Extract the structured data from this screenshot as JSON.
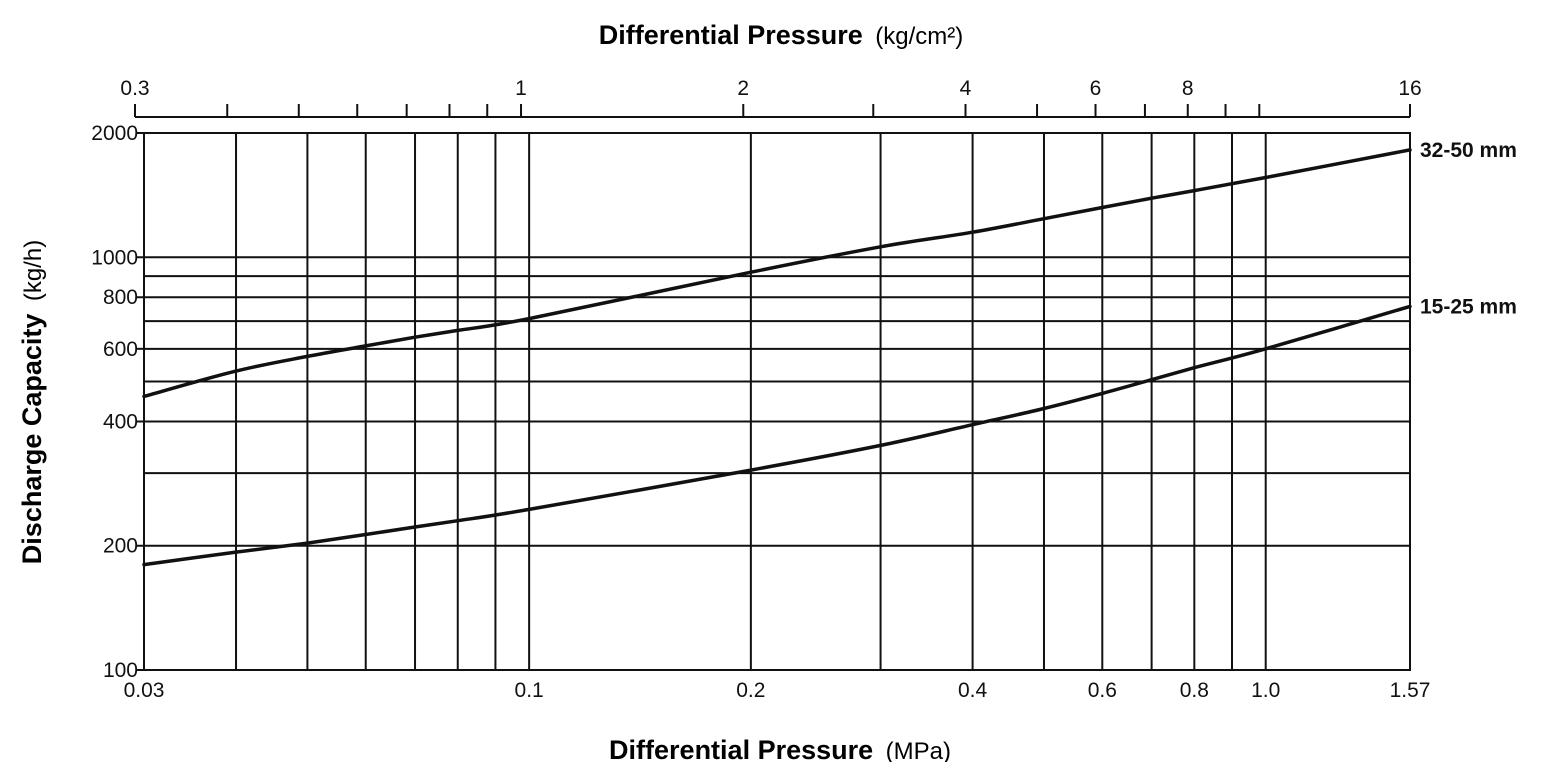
{
  "chart_data": {
    "type": "line",
    "x_scale": "log",
    "y_scale": "log",
    "grid": true,
    "xlim": [
      0.03,
      1.57
    ],
    "ylim": [
      100,
      2000
    ],
    "x_top_lim": [
      0.3,
      16
    ],
    "x_top_label": {
      "bold": "Differential Pressure",
      "unit": "(kg/cm²)"
    },
    "x_bottom_label": {
      "bold": "Differential Pressure",
      "unit": "(MPa)"
    },
    "y_label": {
      "bold": "Discharge Capacity",
      "unit": "(kg/h)"
    },
    "x_bottom_ticks": [
      {
        "value": 0.03,
        "label": "0.03"
      },
      {
        "value": 0.1,
        "label": "0.1"
      },
      {
        "value": 0.2,
        "label": "0.2"
      },
      {
        "value": 0.4,
        "label": "0.4"
      },
      {
        "value": 0.6,
        "label": "0.6"
      },
      {
        "value": 0.8,
        "label": "0.8"
      },
      {
        "value": 1.0,
        "label": "1.0"
      },
      {
        "value": 1.57,
        "label": "1.57"
      }
    ],
    "x_gridlines": [
      0.04,
      0.05,
      0.06,
      0.07,
      0.08,
      0.09,
      0.1,
      0.2,
      0.3,
      0.4,
      0.5,
      0.6,
      0.7,
      0.8,
      0.9,
      1.0
    ],
    "x_top_ticks": [
      {
        "value": 0.3,
        "label": "0.3"
      },
      {
        "value": 1,
        "label": "1"
      },
      {
        "value": 2,
        "label": "2"
      },
      {
        "value": 4,
        "label": "4"
      },
      {
        "value": 6,
        "label": "6"
      },
      {
        "value": 8,
        "label": "8"
      },
      {
        "value": 16,
        "label": "16"
      }
    ],
    "x_top_minor_ticks": [
      0.4,
      0.5,
      0.6,
      0.7,
      0.8,
      0.9,
      3,
      5,
      7,
      9,
      10
    ],
    "y_ticks": [
      {
        "value": 100,
        "label": "100"
      },
      {
        "value": 200,
        "label": "200"
      },
      {
        "value": 400,
        "label": "400"
      },
      {
        "value": 600,
        "label": "600"
      },
      {
        "value": 800,
        "label": "800"
      },
      {
        "value": 1000,
        "label": "1000"
      },
      {
        "value": 2000,
        "label": "2000"
      }
    ],
    "y_gridlines": [
      200,
      300,
      400,
      500,
      600,
      700,
      800,
      900,
      1000
    ],
    "series": [
      {
        "name": "32-50 mm",
        "x": [
          0.03,
          0.04,
          0.05,
          0.06,
          0.07,
          0.08,
          0.1,
          0.2,
          0.3,
          0.4,
          0.5,
          0.6,
          0.7,
          0.8,
          1.0,
          1.57
        ],
        "y": [
          460,
          530,
          575,
          610,
          640,
          665,
          710,
          920,
          1060,
          1150,
          1240,
          1320,
          1390,
          1450,
          1560,
          1820
        ]
      },
      {
        "name": "15-25 mm",
        "x": [
          0.03,
          0.04,
          0.05,
          0.06,
          0.07,
          0.08,
          0.1,
          0.2,
          0.3,
          0.4,
          0.5,
          0.6,
          0.7,
          0.8,
          1.0,
          1.57
        ],
        "y": [
          180,
          193,
          203,
          213,
          222,
          230,
          245,
          305,
          350,
          393,
          430,
          468,
          505,
          540,
          600,
          760
        ]
      }
    ]
  }
}
